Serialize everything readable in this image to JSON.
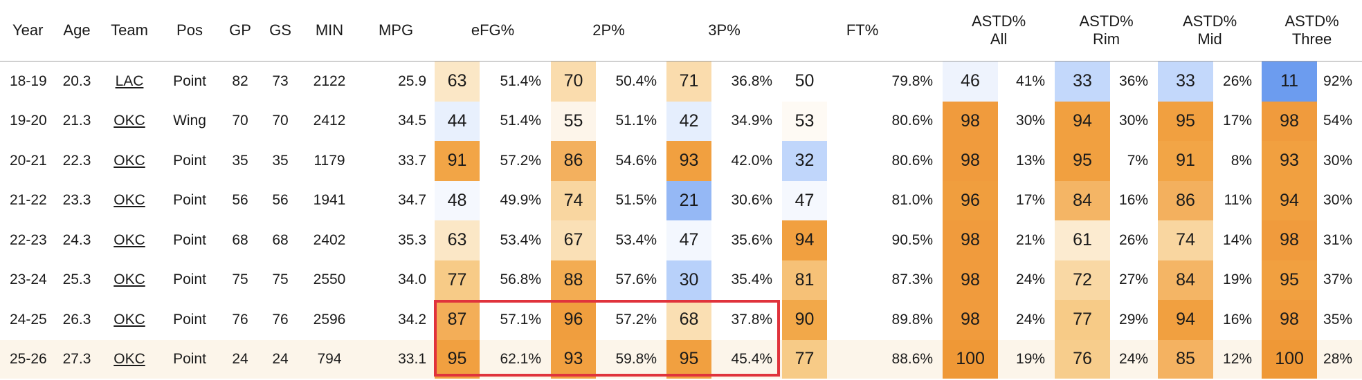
{
  "table": {
    "headers": {
      "year": "Year",
      "age": "Age",
      "team": "Team",
      "pos": "Pos",
      "gp": "GP",
      "gs": "GS",
      "min": "MIN",
      "mpg": "MPG",
      "efg": "eFG%",
      "two": "2P%",
      "three": "3P%",
      "ft": "FT%",
      "astd_all": [
        "ASTD%",
        "All"
      ],
      "astd_rim": [
        "ASTD%",
        "Rim"
      ],
      "astd_mid": [
        "ASTD%",
        "Mid"
      ],
      "astd_three": [
        "ASTD%",
        "Three"
      ]
    },
    "rows": [
      {
        "year": "18-19",
        "age": "20.3",
        "team": "LAC",
        "pos": "Point",
        "gp": "82",
        "gs": "73",
        "min": "2122",
        "mpg": "25.9",
        "efg": {
          "pct": "63",
          "val": "51.4%",
          "color": "#fbe7c6"
        },
        "two": {
          "pct": "70",
          "val": "50.4%",
          "color": "#fadcad"
        },
        "three": {
          "pct": "71",
          "val": "36.8%",
          "color": "#fadcad"
        },
        "ft": {
          "pct": "50",
          "val": "79.8%",
          "color": "#ffffff"
        },
        "astd_all": {
          "pct": "46",
          "val": "41%",
          "color": "#eef3fd"
        },
        "astd_rim": {
          "pct": "33",
          "val": "36%",
          "color": "#c3d8fb"
        },
        "astd_mid": {
          "pct": "33",
          "val": "26%",
          "color": "#c3d8fb"
        },
        "astd_three": {
          "pct": "11",
          "val": "92%",
          "color": "#6c9cef"
        }
      },
      {
        "year": "19-20",
        "age": "21.3",
        "team": "OKC",
        "pos": "Wing",
        "gp": "70",
        "gs": "70",
        "min": "2412",
        "mpg": "34.5",
        "efg": {
          "pct": "44",
          "val": "51.4%",
          "color": "#e8f0fd"
        },
        "two": {
          "pct": "55",
          "val": "51.1%",
          "color": "#fdf5ea"
        },
        "three": {
          "pct": "42",
          "val": "34.9%",
          "color": "#e5eefd"
        },
        "ft": {
          "pct": "53",
          "val": "80.6%",
          "color": "#fefaf4"
        },
        "astd_all": {
          "pct": "98",
          "val": "30%",
          "color": "#f09b3d"
        },
        "astd_rim": {
          "pct": "94",
          "val": "30%",
          "color": "#f1a040"
        },
        "astd_mid": {
          "pct": "95",
          "val": "17%",
          "color": "#f1a040"
        },
        "astd_three": {
          "pct": "98",
          "val": "54%",
          "color": "#f09b3d"
        }
      },
      {
        "year": "20-21",
        "age": "22.3",
        "team": "OKC",
        "pos": "Point",
        "gp": "35",
        "gs": "35",
        "min": "1179",
        "mpg": "33.7",
        "efg": {
          "pct": "91",
          "val": "57.2%",
          "color": "#f2a546"
        },
        "two": {
          "pct": "86",
          "val": "54.6%",
          "color": "#f3b05e"
        },
        "three": {
          "pct": "93",
          "val": "42.0%",
          "color": "#f1a040"
        },
        "ft": {
          "pct": "32",
          "val": "80.6%",
          "color": "#c0d6fb"
        },
        "astd_all": {
          "pct": "98",
          "val": "13%",
          "color": "#f09b3d"
        },
        "astd_rim": {
          "pct": "95",
          "val": "7%",
          "color": "#f1a040"
        },
        "astd_mid": {
          "pct": "91",
          "val": "8%",
          "color": "#f2a546"
        },
        "astd_three": {
          "pct": "93",
          "val": "30%",
          "color": "#f1a040"
        }
      },
      {
        "year": "21-22",
        "age": "23.3",
        "team": "OKC",
        "pos": "Point",
        "gp": "56",
        "gs": "56",
        "min": "1941",
        "mpg": "34.7",
        "efg": {
          "pct": "48",
          "val": "49.9%",
          "color": "#f5f8fe"
        },
        "two": {
          "pct": "74",
          "val": "51.5%",
          "color": "#f9d6a0"
        },
        "three": {
          "pct": "21",
          "val": "30.6%",
          "color": "#95b8f5"
        },
        "ft": {
          "pct": "47",
          "val": "81.0%",
          "color": "#f5f8fe"
        },
        "astd_all": {
          "pct": "96",
          "val": "17%",
          "color": "#f09e3e"
        },
        "astd_rim": {
          "pct": "84",
          "val": "16%",
          "color": "#f4b565"
        },
        "astd_mid": {
          "pct": "86",
          "val": "11%",
          "color": "#f3b05e"
        },
        "astd_three": {
          "pct": "94",
          "val": "30%",
          "color": "#f1a040"
        }
      },
      {
        "year": "22-23",
        "age": "24.3",
        "team": "OKC",
        "pos": "Point",
        "gp": "68",
        "gs": "68",
        "min": "2402",
        "mpg": "35.3",
        "efg": {
          "pct": "63",
          "val": "53.4%",
          "color": "#fbe7c6"
        },
        "two": {
          "pct": "67",
          "val": "53.4%",
          "color": "#fae0b6"
        },
        "three": {
          "pct": "47",
          "val": "35.6%",
          "color": "#f3f7fe"
        },
        "ft": {
          "pct": "94",
          "val": "90.5%",
          "color": "#f1a040"
        },
        "astd_all": {
          "pct": "98",
          "val": "21%",
          "color": "#f09b3d"
        },
        "astd_rim": {
          "pct": "61",
          "val": "26%",
          "color": "#fcebd0"
        },
        "astd_mid": {
          "pct": "74",
          "val": "14%",
          "color": "#f9d6a0"
        },
        "astd_three": {
          "pct": "98",
          "val": "31%",
          "color": "#f09b3d"
        }
      },
      {
        "year": "23-24",
        "age": "25.3",
        "team": "OKC",
        "pos": "Point",
        "gp": "75",
        "gs": "75",
        "min": "2550",
        "mpg": "34.0",
        "efg": {
          "pct": "77",
          "val": "56.8%",
          "color": "#f7cb87"
        },
        "two": {
          "pct": "88",
          "val": "57.6%",
          "color": "#f3ac52"
        },
        "three": {
          "pct": "30",
          "val": "35.4%",
          "color": "#b8d1fa"
        },
        "ft": {
          "pct": "81",
          "val": "87.3%",
          "color": "#f6c177"
        },
        "astd_all": {
          "pct": "98",
          "val": "24%",
          "color": "#f09b3d"
        },
        "astd_rim": {
          "pct": "72",
          "val": "27%",
          "color": "#f9d8a4"
        },
        "astd_mid": {
          "pct": "84",
          "val": "19%",
          "color": "#f4b565"
        },
        "astd_three": {
          "pct": "95",
          "val": "37%",
          "color": "#f1a040"
        }
      },
      {
        "year": "24-25",
        "age": "26.3",
        "team": "OKC",
        "pos": "Point",
        "gp": "76",
        "gs": "76",
        "min": "2596",
        "mpg": "34.2",
        "efg": {
          "pct": "87",
          "val": "57.1%",
          "color": "#f3ae58"
        },
        "two": {
          "pct": "96",
          "val": "57.2%",
          "color": "#f09e3e"
        },
        "three": {
          "pct": "68",
          "val": "37.8%",
          "color": "#fadfb3"
        },
        "ft": {
          "pct": "90",
          "val": "89.8%",
          "color": "#f2a849"
        },
        "astd_all": {
          "pct": "98",
          "val": "24%",
          "color": "#f09b3d"
        },
        "astd_rim": {
          "pct": "77",
          "val": "29%",
          "color": "#f7cb87"
        },
        "astd_mid": {
          "pct": "94",
          "val": "16%",
          "color": "#f1a040"
        },
        "astd_three": {
          "pct": "98",
          "val": "35%",
          "color": "#f09b3d"
        }
      },
      {
        "year": "25-26",
        "age": "27.3",
        "team": "OKC",
        "pos": "Point",
        "gp": "24",
        "gs": "24",
        "min": "794",
        "mpg": "33.1",
        "efg": {
          "pct": "95",
          "val": "62.1%",
          "color": "#f1a040"
        },
        "two": {
          "pct": "93",
          "val": "59.8%",
          "color": "#f1a040"
        },
        "three": {
          "pct": "95",
          "val": "45.4%",
          "color": "#f1a040"
        },
        "ft": {
          "pct": "77",
          "val": "88.6%",
          "color": "#f7cb87"
        },
        "astd_all": {
          "pct": "100",
          "val": "19%",
          "color": "#ef9836"
        },
        "astd_rim": {
          "pct": "76",
          "val": "24%",
          "color": "#f7cd8c"
        },
        "astd_mid": {
          "pct": "85",
          "val": "12%",
          "color": "#f4b261"
        },
        "astd_three": {
          "pct": "100",
          "val": "28%",
          "color": "#ef9836"
        }
      }
    ]
  },
  "highlight": {
    "color": "#e0333c"
  }
}
